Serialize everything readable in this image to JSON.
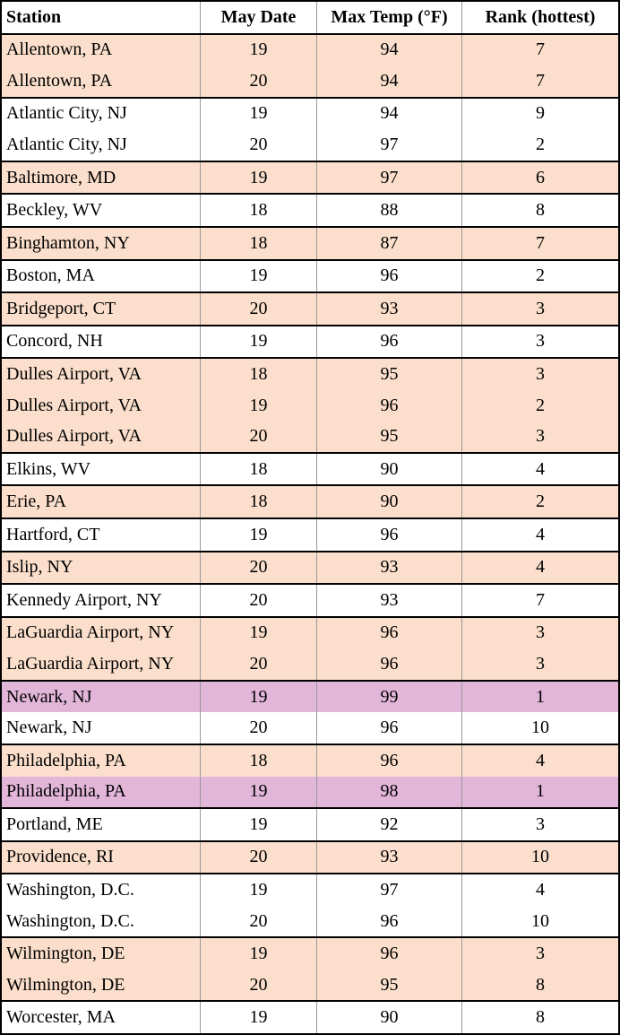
{
  "table": {
    "columns": [
      "Station",
      "May Date",
      "Max Temp (°F)",
      "Rank (hottest)"
    ],
    "rows": [
      [
        "Allentown, PA",
        19,
        94,
        7
      ],
      [
        "Allentown, PA",
        20,
        94,
        7
      ],
      [
        "Atlantic City, NJ",
        19,
        94,
        9
      ],
      [
        "Atlantic City, NJ",
        20,
        97,
        2
      ],
      [
        "Baltimore, MD",
        19,
        97,
        6
      ],
      [
        "Beckley, WV",
        18,
        88,
        8
      ],
      [
        "Binghamton, NY",
        18,
        87,
        7
      ],
      [
        "Boston, MA",
        19,
        96,
        2
      ],
      [
        "Bridgeport, CT",
        20,
        93,
        3
      ],
      [
        "Concord, NH",
        19,
        96,
        3
      ],
      [
        "Dulles Airport, VA",
        18,
        95,
        3
      ],
      [
        "Dulles Airport, VA",
        19,
        96,
        2
      ],
      [
        "Dulles Airport, VA",
        20,
        95,
        3
      ],
      [
        "Elkins, WV",
        18,
        90,
        4
      ],
      [
        "Erie, PA",
        18,
        90,
        2
      ],
      [
        "Hartford, CT",
        19,
        96,
        4
      ],
      [
        "Islip, NY",
        20,
        93,
        4
      ],
      [
        "Kennedy Airport, NY",
        20,
        93,
        7
      ],
      [
        "LaGuardia Airport, NY",
        19,
        96,
        3
      ],
      [
        "LaGuardia Airport, NY",
        20,
        96,
        3
      ],
      [
        "Newark, NJ",
        19,
        99,
        1
      ],
      [
        "Newark, NJ",
        20,
        96,
        10
      ],
      [
        "Philadelphia, PA",
        18,
        96,
        4
      ],
      [
        "Philadelphia, PA",
        19,
        98,
        1
      ],
      [
        "Portland, ME",
        19,
        92,
        3
      ],
      [
        "Providence, RI",
        20,
        93,
        10
      ],
      [
        "Washington, D.C.",
        19,
        97,
        4
      ],
      [
        "Washington, D.C.",
        20,
        96,
        10
      ],
      [
        "Wilmington, DE",
        19,
        96,
        3
      ],
      [
        "Wilmington, DE",
        20,
        95,
        8
      ],
      [
        "Worcester, MA",
        19,
        90,
        8
      ]
    ],
    "row_fills": [
      "#fbdfcc",
      "#fbdfcc",
      "#ffffff",
      "#ffffff",
      "#fbdfcc",
      "#ffffff",
      "#fbdfcc",
      "#ffffff",
      "#fbdfcc",
      "#ffffff",
      "#fbdfcc",
      "#fbdfcc",
      "#fbdfcc",
      "#ffffff",
      "#fbdfcc",
      "#ffffff",
      "#fbdfcc",
      "#ffffff",
      "#fbdfcc",
      "#fbdfcc",
      "#e2b6d9",
      "#ffffff",
      "#fbdfcc",
      "#e2b6d9",
      "#ffffff",
      "#fbdfcc",
      "#ffffff",
      "#ffffff",
      "#fbdfcc",
      "#fbdfcc",
      "#ffffff"
    ]
  }
}
